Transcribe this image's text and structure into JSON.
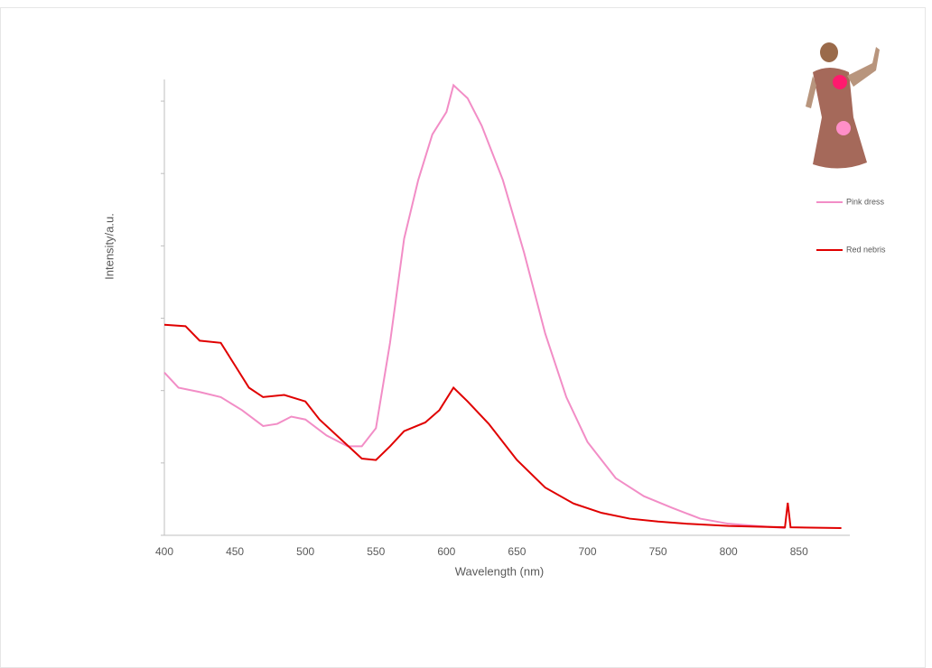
{
  "chart_data": {
    "type": "line",
    "xlabel": "Wavelength (nm)",
    "ylabel": "Intensity/a.u.",
    "xlim": [
      400,
      886
    ],
    "xticks": [
      400,
      450,
      500,
      550,
      600,
      650,
      700,
      750,
      800,
      850
    ],
    "ylim": [
      0,
      6.3
    ],
    "yticks": [
      0,
      1,
      2,
      3,
      4,
      5,
      6
    ],
    "ytick_labels": false,
    "legend": "right",
    "series": [
      {
        "name": "Pink dress",
        "color": "#f28dc6",
        "x": [
          400,
          410,
          425,
          440,
          455,
          470,
          480,
          490,
          500,
          515,
          530,
          540,
          550,
          560,
          570,
          580,
          590,
          600,
          605,
          615,
          625,
          640,
          655,
          670,
          685,
          700,
          720,
          740,
          760,
          780,
          800,
          820,
          840
        ],
        "values": [
          2.25,
          2.04,
          1.98,
          1.91,
          1.73,
          1.51,
          1.54,
          1.64,
          1.6,
          1.38,
          1.23,
          1.23,
          1.48,
          2.66,
          4.1,
          4.91,
          5.54,
          5.85,
          6.22,
          6.04,
          5.66,
          4.91,
          3.91,
          2.79,
          1.91,
          1.29,
          0.79,
          0.54,
          0.38,
          0.23,
          0.16,
          0.13,
          0.1
        ]
      },
      {
        "name": "Red nebris",
        "color": "#e00000",
        "x": [
          400,
          415,
          425,
          440,
          450,
          460,
          470,
          485,
          500,
          510,
          525,
          540,
          550,
          560,
          570,
          585,
          595,
          605,
          615,
          630,
          650,
          670,
          690,
          710,
          730,
          750,
          770,
          800,
          840,
          842,
          844,
          880
        ],
        "values": [
          2.91,
          2.89,
          2.69,
          2.66,
          2.35,
          2.04,
          1.91,
          1.94,
          1.85,
          1.6,
          1.33,
          1.06,
          1.04,
          1.23,
          1.44,
          1.56,
          1.73,
          2.04,
          1.85,
          1.54,
          1.04,
          0.66,
          0.44,
          0.31,
          0.23,
          0.19,
          0.16,
          0.13,
          0.11,
          0.45,
          0.11,
          0.1
        ]
      }
    ]
  }
}
